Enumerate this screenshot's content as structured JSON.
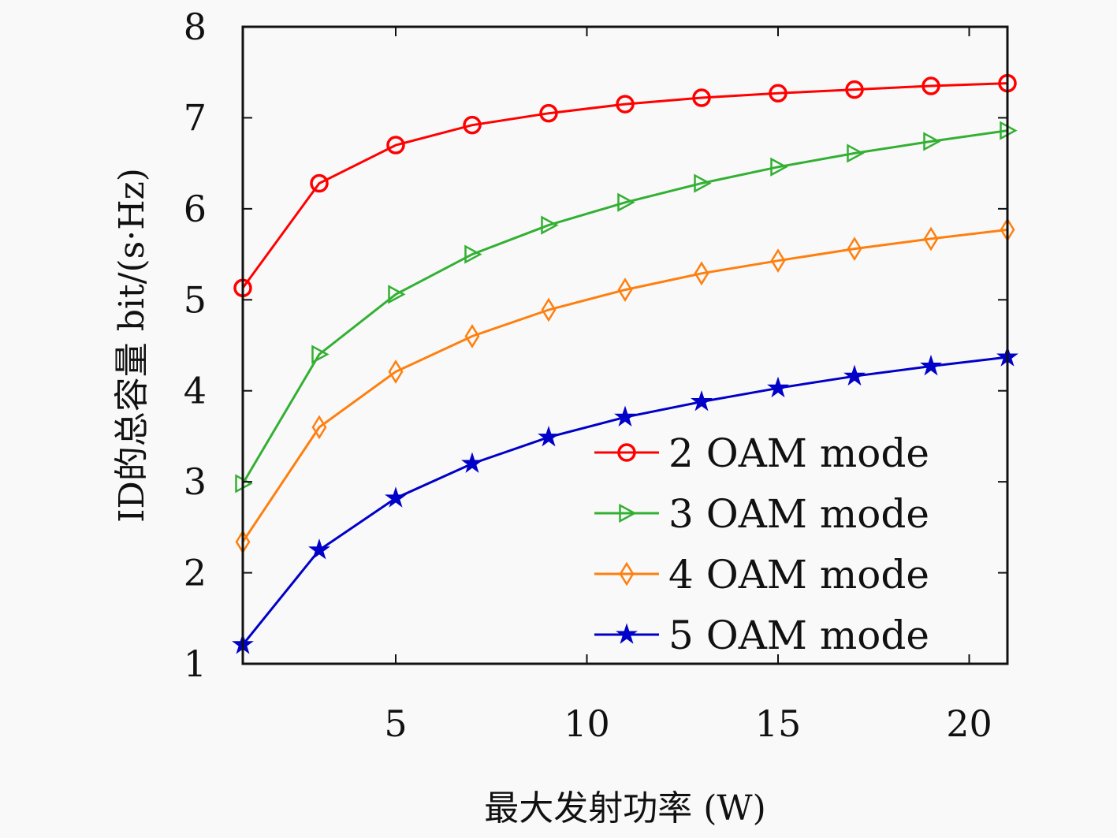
{
  "chart_data": {
    "type": "line",
    "title": "",
    "xlabel": "最大发射功率 (W)",
    "ylabel": "ID的总容量 bit/(s·Hz)",
    "xlim": [
      1,
      21
    ],
    "ylim": [
      1,
      8
    ],
    "xticks": [
      5,
      10,
      15,
      20
    ],
    "xtick_labels": [
      "5",
      "10",
      "15",
      "20"
    ],
    "yticks": [
      1,
      2,
      3,
      4,
      5,
      6,
      7,
      8
    ],
    "ytick_labels": [
      "1",
      "2",
      "3",
      "4",
      "5",
      "6",
      "7",
      "8"
    ],
    "grid": false,
    "legend_position": "bottom-right",
    "x": [
      1,
      3,
      5,
      7,
      9,
      11,
      13,
      15,
      17,
      19,
      21
    ],
    "series": [
      {
        "name": "2 OAM mode",
        "color": "#ff0000",
        "marker": "circle",
        "values": [
          5.13,
          6.28,
          6.7,
          6.92,
          7.05,
          7.15,
          7.22,
          7.27,
          7.31,
          7.35,
          7.38
        ]
      },
      {
        "name": "3 OAM mode",
        "color": "#33b033",
        "marker": "triangle-right",
        "values": [
          2.98,
          4.4,
          5.06,
          5.5,
          5.82,
          6.07,
          6.28,
          6.46,
          6.61,
          6.74,
          6.86
        ]
      },
      {
        "name": "4 OAM mode",
        "color": "#ff7f0e",
        "marker": "diamond",
        "values": [
          2.34,
          3.6,
          4.21,
          4.6,
          4.89,
          5.11,
          5.29,
          5.43,
          5.56,
          5.67,
          5.77
        ]
      },
      {
        "name": "5 OAM mode",
        "color": "#0000c8",
        "marker": "star",
        "values": [
          1.21,
          2.25,
          2.82,
          3.2,
          3.49,
          3.71,
          3.88,
          4.03,
          4.16,
          4.27,
          4.37
        ]
      }
    ]
  }
}
